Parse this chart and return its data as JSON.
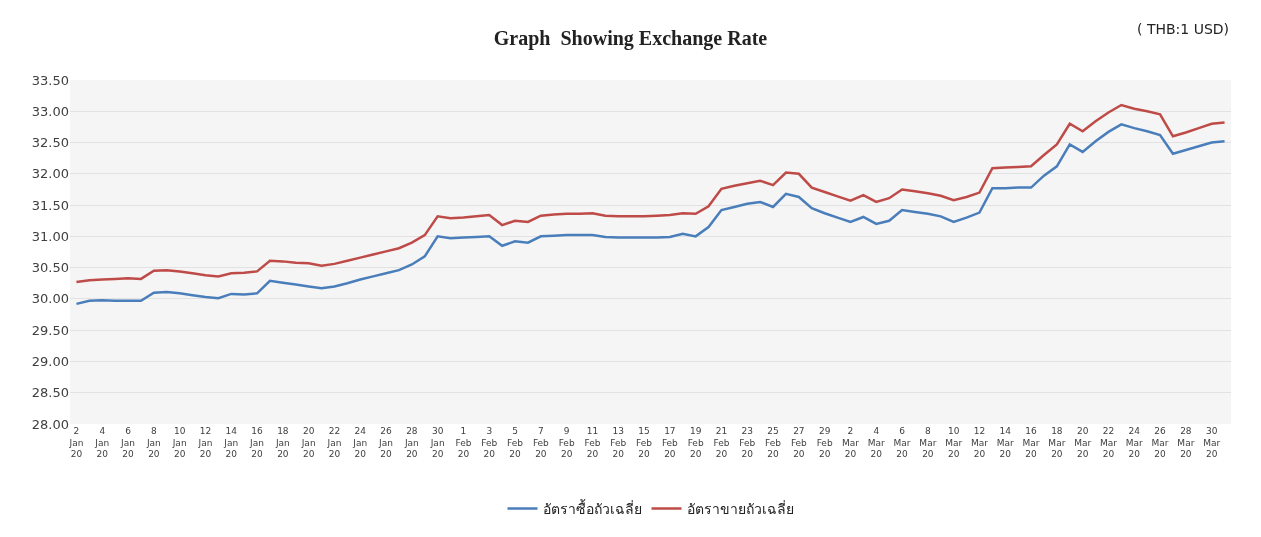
{
  "chart_data": {
    "type": "line",
    "title": "Graph  Showing Exchange Rate",
    "annotations": [
      "( THB:1 USD)"
    ],
    "categories": [
      "2 Jan 20",
      null,
      "4 Jan 20",
      null,
      "6 Jan 20",
      null,
      "8 Jan 20",
      null,
      "10 Jan 20",
      null,
      "12 Jan 20",
      null,
      "14 Jan 20",
      null,
      "16 Jan 20",
      null,
      "18 Jan 20",
      null,
      "20 Jan 20",
      null,
      "22 Jan 20",
      null,
      "24 Jan 20",
      null,
      "26 Jan 20",
      null,
      "28 Jan 20",
      null,
      "30 Jan 20",
      null,
      "1 Feb 20",
      null,
      "3 Feb 20",
      null,
      "5 Feb 20",
      null,
      "7 Feb 20",
      null,
      "9 Feb 20",
      null,
      "11 Feb 20",
      null,
      "13 Feb 20",
      null,
      "15 Feb 20",
      null,
      "17 Feb 20",
      null,
      "19 Feb 20",
      null,
      "21 Feb 20",
      null,
      "23 Feb 20",
      null,
      "25 Feb 20",
      null,
      "27 Feb 20",
      null,
      "29 Feb 20",
      null,
      "2 Mar 20",
      null,
      "4 Mar 20",
      null,
      "6 Mar 20",
      null,
      "8 Mar 20",
      null,
      "10 Mar 20",
      null,
      "12 Mar 20",
      null,
      "14 Mar 20",
      null,
      "16 Mar 20",
      null,
      "18 Mar 20",
      null,
      "20 Mar 20",
      null,
      "22 Mar 20",
      null,
      "24 Mar 20",
      null,
      "26 Mar 20",
      null,
      "28 Mar 20",
      null,
      "30 Mar 20",
      null
    ],
    "series": [
      {
        "name": "อัตราซื้อถัวเฉลี่ย",
        "color": "#4a7ebb",
        "values": [
          29.92,
          29.97,
          29.98,
          29.97,
          29.97,
          29.97,
          30.1,
          30.11,
          30.09,
          30.06,
          30.03,
          30.01,
          30.08,
          30.07,
          30.09,
          30.29,
          30.26,
          30.23,
          30.2,
          30.17,
          30.2,
          30.25,
          30.31,
          30.36,
          30.41,
          30.46,
          30.55,
          30.68,
          31.0,
          30.97,
          30.98,
          30.99,
          31.0,
          30.85,
          30.92,
          30.9,
          31.0,
          31.01,
          31.02,
          31.02,
          31.02,
          30.99,
          30.98,
          30.98,
          30.98,
          30.98,
          30.99,
          31.04,
          31.0,
          31.15,
          31.42,
          31.47,
          31.52,
          31.55,
          31.47,
          31.68,
          31.63,
          31.45,
          31.37,
          31.3,
          31.23,
          31.31,
          31.2,
          31.25,
          31.42,
          31.39,
          31.36,
          31.32,
          31.23,
          31.3,
          31.38,
          31.77,
          31.77,
          31.78,
          31.78,
          31.97,
          32.12,
          32.47,
          32.35,
          32.52,
          32.67,
          32.79,
          32.73,
          32.68,
          32.62,
          32.32,
          32.38,
          32.44,
          32.5,
          32.52
        ]
      },
      {
        "name": "อัตราขายถัวเฉลี่ย",
        "color": "#be4b48",
        "values": [
          30.27,
          30.3,
          30.31,
          30.32,
          30.33,
          30.32,
          30.45,
          30.46,
          30.44,
          30.41,
          30.38,
          30.36,
          30.41,
          30.42,
          30.44,
          30.61,
          30.6,
          30.58,
          30.57,
          30.53,
          30.56,
          30.61,
          30.66,
          30.71,
          30.76,
          30.81,
          30.9,
          31.02,
          31.32,
          31.29,
          31.3,
          31.32,
          31.34,
          31.18,
          31.25,
          31.23,
          31.33,
          31.35,
          31.36,
          31.36,
          31.37,
          31.33,
          31.32,
          31.32,
          31.32,
          31.33,
          31.34,
          31.37,
          31.36,
          31.48,
          31.76,
          31.81,
          31.85,
          31.89,
          31.82,
          32.02,
          32.0,
          31.78,
          31.71,
          31.64,
          31.57,
          31.66,
          31.55,
          31.61,
          31.75,
          31.72,
          31.69,
          31.65,
          31.58,
          31.63,
          31.7,
          32.09,
          32.1,
          32.11,
          32.12,
          32.3,
          32.47,
          32.8,
          32.68,
          32.84,
          32.98,
          33.1,
          33.04,
          33.0,
          32.95,
          32.6,
          32.66,
          32.73,
          32.8,
          32.82
        ]
      }
    ],
    "ylim": [
      28,
      33.5
    ],
    "yticks": [
      {
        "value": 28,
        "label": "28.00"
      },
      {
        "value": 28.5,
        "label": "28.50"
      },
      {
        "value": 29,
        "label": "29.00"
      },
      {
        "value": 29.5,
        "label": "29.50"
      },
      {
        "value": 30,
        "label": "30.00"
      },
      {
        "value": 30.5,
        "label": "30.50"
      },
      {
        "value": 31,
        "label": "31.00"
      },
      {
        "value": 31.5,
        "label": "31.50"
      },
      {
        "value": 32,
        "label": "32.00"
      },
      {
        "value": 32.5,
        "label": "32.50"
      },
      {
        "value": 33,
        "label": "33.00"
      },
      {
        "value": 33.5,
        "label": "33.50"
      }
    ],
    "grid": "y",
    "legend": "bottom",
    "marker": "none",
    "line_style": "solid"
  }
}
